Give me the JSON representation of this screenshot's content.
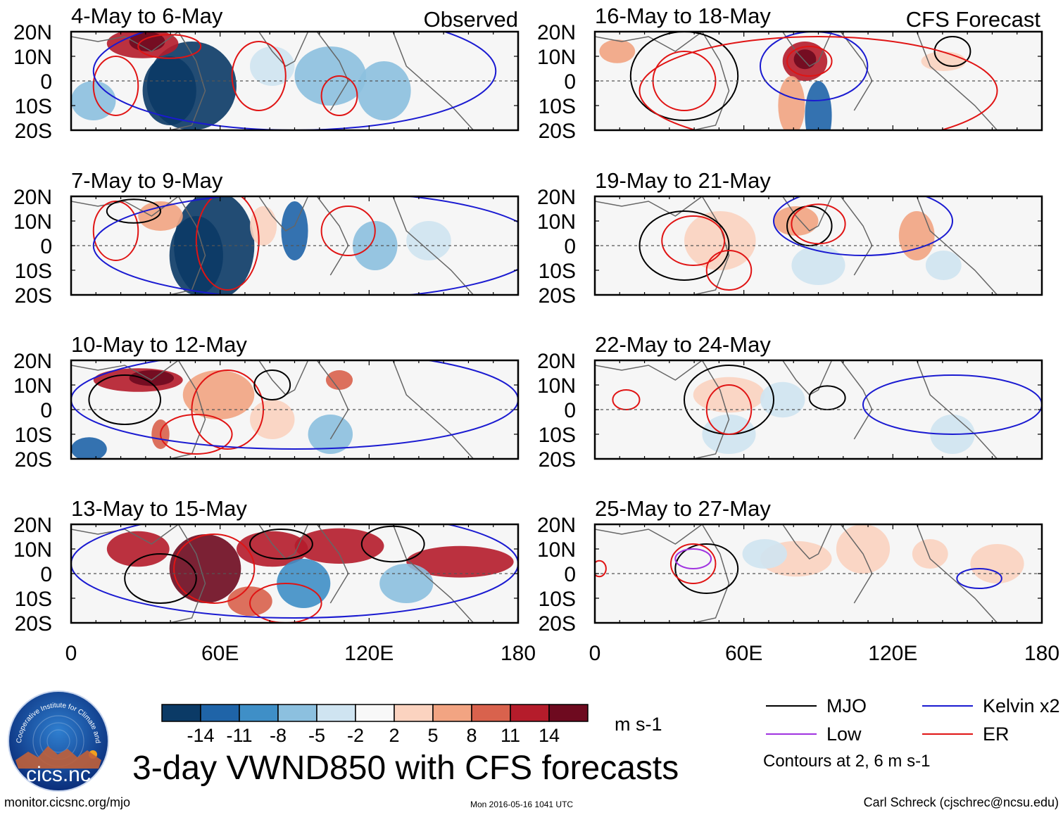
{
  "figure": {
    "title": "3-day VWND850 with CFS forecasts",
    "footer_left": "monitor.cicsnc.org/mjo",
    "footer_center": "Mon 2016-05-16 1041 UTC",
    "footer_right": "Carl Schreck (cjschrec@ncsu.edu)"
  },
  "columns": {
    "left_header": "Observed",
    "right_header": "CFS Forecast"
  },
  "panels": [
    {
      "label": "4-May to 6-May",
      "column": "Observed"
    },
    {
      "label": "7-May to 9-May",
      "column": "Observed"
    },
    {
      "label": "10-May to 12-May",
      "column": "Observed"
    },
    {
      "label": "13-May to 15-May",
      "column": "Observed"
    },
    {
      "label": "16-May to 18-May",
      "column": "CFS Forecast"
    },
    {
      "label": "19-May to 21-May",
      "column": "CFS Forecast"
    },
    {
      "label": "22-May to 24-May",
      "column": "CFS Forecast"
    },
    {
      "label": "25-May to 27-May",
      "column": "CFS Forecast"
    }
  ],
  "axes": {
    "lat_ticks": [
      "20N",
      "10N",
      "0",
      "10S",
      "20S"
    ],
    "lon_ticks": [
      "0",
      "60E",
      "120E",
      "180"
    ],
    "lat_range": [
      -20,
      20
    ],
    "lon_range": [
      0,
      180
    ]
  },
  "colorbar": {
    "tick_labels": [
      "-14",
      "-11",
      "-8",
      "-5",
      "-2",
      "2",
      "5",
      "8",
      "11",
      "14"
    ],
    "colors": [
      "#0b3a66",
      "#1f64a8",
      "#3f8fc7",
      "#8cc0df",
      "#cfe4f1",
      "#f8f8f8",
      "#fbd3c0",
      "#f2a482",
      "#d9624d",
      "#b51c2b",
      "#6e0a1f"
    ],
    "units": "m s-1"
  },
  "legend": {
    "items": [
      {
        "label": "MJO",
        "color": "#000000"
      },
      {
        "label": "Kelvin x2",
        "color": "#1a1ad1"
      },
      {
        "label": "Low",
        "color": "#a033e0"
      },
      {
        "label": "ER",
        "color": "#e01414"
      }
    ],
    "note": "Contours at 2, 6 m s-1"
  },
  "logo": {
    "arc_text": "Cooperative Institute for Climate and Satellites",
    "name": "cics.nc"
  }
}
